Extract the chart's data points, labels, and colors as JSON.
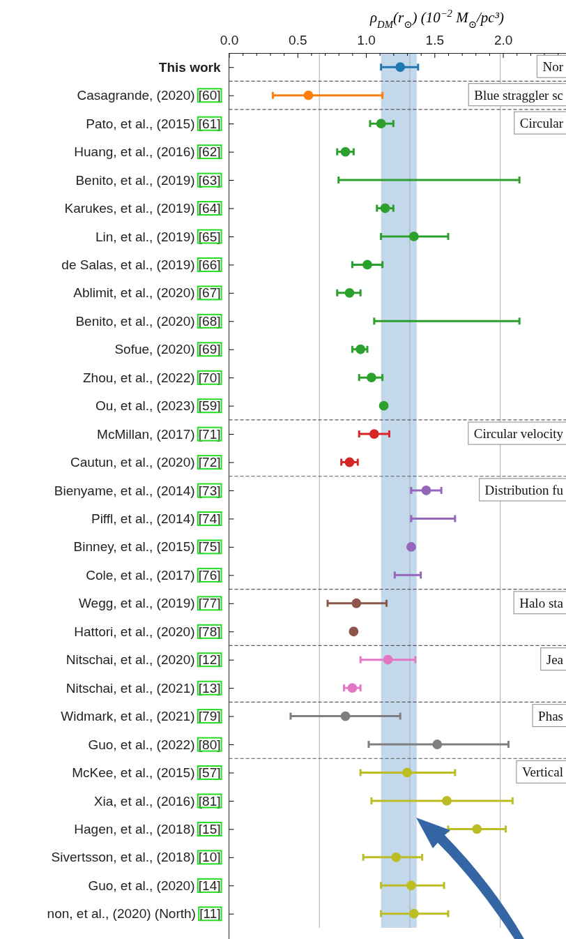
{
  "chart_data": {
    "type": "scatter",
    "orientation": "horizontal",
    "xlabel": "ρ$_{DM}$(r$_{⊙}$) (10$^{−2}$ M$_{⊙}$/pc³)",
    "categories": [
      "This work",
      "Casagrande, (2020) [60]",
      "Pato, et al., (2015) [61]",
      "Huang, et al., (2016) [62]",
      "Benito, et al., (2019) [63]",
      "Karukes, et al., (2019) [64]",
      "Lin, et al., (2019) [65]",
      "de Salas, et al., (2019) [66]",
      "Ablimit, et al., (2020) [67]",
      "Benito, et al., (2020) [68]",
      "Sofue, (2020) [69]",
      "Zhou, et al., (2022) [70]",
      "Ou, et al., (2023) [59]",
      "McMillan, (2017) [71]",
      "Cautun, et al., (2020) [72]",
      "Bienyame, et al., (2014) [73]",
      "Piffl, et al., (2014) [74]",
      "Binney, et al., (2015) [75]",
      "Cole, et al., (2017) [76]",
      "Wegg, et al., (2019) [77]",
      "Hattori, et al., (2020) [78]",
      "Nitschai, et al., (2020) [12]",
      "Nitschai, et al., (2021) [13]",
      "Widmark, et al., (2021) [79]",
      "Guo, et al., (2022) [80]",
      "McKee, et al., (2015) [57]",
      "Xia, et al., (2016) [81]",
      "Hagen, et al., (2018) [15]",
      "Sivertsson, et al., (2018) [10]",
      "Guo, et al., (2020) [14]",
      "non, et al., (2020) (North) [11]"
    ],
    "series": [
      {
        "marker": "circle",
        "values": [
          1.25,
          0.58,
          1.11,
          0.85,
          null,
          1.14,
          1.35,
          1.01,
          0.88,
          null,
          0.96,
          1.04,
          1.13,
          1.06,
          0.88,
          1.44,
          null,
          1.33,
          null,
          0.93,
          0.91,
          1.16,
          0.9,
          0.85,
          1.52,
          1.3,
          1.59,
          1.81,
          1.22,
          1.33,
          1.35
        ],
        "errors": [
          [
            1.11,
            1.38
          ],
          [
            0.32,
            1.12
          ],
          [
            1.03,
            1.2
          ],
          [
            0.79,
            0.91
          ],
          null,
          [
            1.08,
            1.2
          ],
          [
            1.11,
            1.6
          ],
          [
            0.9,
            1.12
          ],
          [
            0.79,
            0.96
          ],
          null,
          [
            0.9,
            1.01
          ],
          [
            0.95,
            1.12
          ],
          null,
          [
            0.95,
            1.17
          ],
          [
            0.82,
            0.94
          ],
          [
            1.33,
            1.55
          ],
          null,
          null,
          null,
          [
            0.72,
            1.15
          ],
          null,
          [
            0.96,
            1.36
          ],
          [
            0.84,
            0.96
          ],
          [
            0.45,
            1.25
          ],
          [
            1.02,
            2.04
          ],
          [
            0.96,
            1.65
          ],
          [
            1.04,
            2.07
          ],
          [
            1.6,
            2.02
          ],
          [
            0.98,
            1.41
          ],
          [
            1.11,
            1.57
          ],
          [
            1.11,
            1.6
          ]
        ],
        "colors": [
          "#1f77b4",
          "#ff7f0e",
          "#2ca02c",
          "#2ca02c",
          null,
          "#2ca02c",
          "#2ca02c",
          "#2ca02c",
          "#2ca02c",
          null,
          "#2ca02c",
          "#2ca02c",
          "#2ca02c",
          "#d62728",
          "#d62728",
          "#9467bd",
          null,
          "#9467bd",
          null,
          "#8c564b",
          "#8c564b",
          "#e377c2",
          "#e377c2",
          "#7f7f7f",
          "#7f7f7f",
          "#bcbd22",
          "#bcbd22",
          "#bcbd22",
          "#bcbd22",
          "#bcbd22",
          "#bcbd22"
        ]
      },
      {
        "type": "bar",
        "base": [
          null,
          null,
          null,
          null,
          0.8,
          null,
          null,
          null,
          null,
          1.06,
          null,
          null,
          null,
          null,
          null,
          null,
          1.33,
          null,
          1.21,
          null,
          null,
          null,
          null,
          null,
          null,
          null,
          null,
          null,
          null,
          null,
          null
        ],
        "values": [
          null,
          null,
          null,
          null,
          1.32,
          null,
          null,
          null,
          null,
          1.06,
          null,
          null,
          null,
          null,
          null,
          null,
          0.32,
          null,
          0.19,
          null,
          null,
          null,
          null,
          null,
          null,
          null,
          null,
          null,
          null,
          null,
          null
        ],
        "colors": [
          null,
          null,
          null,
          null,
          "#2ca02c",
          null,
          null,
          null,
          null,
          "#2ca02c",
          null,
          null,
          null,
          null,
          null,
          null,
          "#9467bd",
          null,
          "#9467bd",
          null,
          null,
          null,
          null,
          null,
          null,
          null,
          null,
          null,
          null,
          null,
          null
        ]
      }
    ],
    "xlim": [
      0,
      2.46
    ],
    "xticks": [
      {
        "value": 0,
        "label": "0.0"
      },
      {
        "value": 0.1,
        "label": null
      },
      {
        "value": 0.2,
        "label": null
      },
      {
        "value": 0.3,
        "label": null
      },
      {
        "value": 0.4,
        "label": null
      },
      {
        "value": 0.5,
        "label": "0.5"
      },
      {
        "value": 0.6,
        "label": null
      },
      {
        "value": 0.7,
        "label": null
      },
      {
        "value": 0.8,
        "label": null
      },
      {
        "value": 0.9,
        "label": null
      },
      {
        "value": 1,
        "label": "1.0"
      },
      {
        "value": 1.1,
        "label": null
      },
      {
        "value": 1.2,
        "label": null
      },
      {
        "value": 1.3,
        "label": null
      },
      {
        "value": 1.4,
        "label": null
      },
      {
        "value": 1.5,
        "label": "1.5"
      },
      {
        "value": 1.6,
        "label": null
      },
      {
        "value": 1.7,
        "label": null
      },
      {
        "value": 1.8,
        "label": null
      },
      {
        "value": 1.9,
        "label": null
      },
      {
        "value": 2,
        "label": "2.0"
      },
      {
        "value": 2.1,
        "label": null
      },
      {
        "value": 2.2,
        "label": null
      },
      {
        "value": 2.3,
        "label": null
      },
      {
        "value": 2.4,
        "label": null
      }
    ],
    "bands": [
      {
        "axis": "x",
        "from": 1.11,
        "to": 1.37,
        "color": "#c3d8ea"
      }
    ],
    "ref_lines": [
      {
        "axis": "x",
        "value": 0.66,
        "color": "#b8b8b8",
        "line_style": "solid"
      },
      {
        "axis": "x",
        "value": 1.32,
        "color": "#a8b4bf",
        "line_style": "solid"
      },
      {
        "axis": "x",
        "value": 1.98,
        "color": "#b8b8b8",
        "line_style": "solid"
      },
      {
        "axis": "y",
        "value": "This work",
        "color": "#555555",
        "line_style": "dashed"
      },
      {
        "axis": "y",
        "value": "Casagrande, (2020) [60]",
        "color": "#555555",
        "line_style": "dashed"
      },
      {
        "axis": "y",
        "value": "Ou, et al., (2023) [59]",
        "color": "#555555",
        "line_style": "dashed"
      },
      {
        "axis": "y",
        "value": "Cautun, et al., (2020) [72]",
        "color": "#555555",
        "line_style": "dashed"
      },
      {
        "axis": "y",
        "value": "Cole, et al., (2017) [76]",
        "color": "#555555",
        "line_style": "dashed"
      },
      {
        "axis": "y",
        "value": "Hattori, et al., (2020) [78]",
        "color": "#555555",
        "line_style": "dashed"
      },
      {
        "axis": "y",
        "value": "Nitschai, et al., (2021) [13]",
        "color": "#555555",
        "line_style": "dashed"
      },
      {
        "axis": "y",
        "value": "Guo, et al., (2022) [80]",
        "color": "#555555",
        "line_style": "dashed"
      }
    ],
    "annotations": [
      "Nor",
      "Blue straggler sc",
      "Circular",
      "Circular velocity",
      "Distribution fu",
      "Halo sta",
      "Jea",
      "Phas",
      "Vertical"
    ]
  }
}
